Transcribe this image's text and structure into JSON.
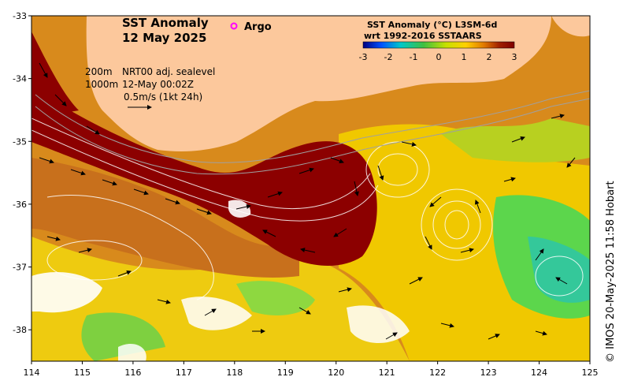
{
  "title": {
    "line1": "SST Anomaly",
    "line2": "12 May 2025"
  },
  "legend_marker": {
    "label": "Argo",
    "color": "#ff00ff"
  },
  "colorbar": {
    "title_line1": "SST Anomaly (°C) L3SM-6d",
    "title_line2": "wrt 1992-2016 SSTAARS",
    "ticks": [
      "-3",
      "-2",
      "-1",
      "0",
      "1",
      "2",
      "3"
    ],
    "colors": [
      "#00007f",
      "#0050ff",
      "#00c8c8",
      "#40c040",
      "#c8e000",
      "#ffd000",
      "#e07800",
      "#a02000",
      "#7f0000"
    ]
  },
  "annotations": {
    "depth1": "200m",
    "depth2": "1000m",
    "product": "NRT00 adj. sealevel",
    "time": "12-May 00:02Z",
    "scale": "0.5m/s (1kt 24h)"
  },
  "axes": {
    "x_ticks": [
      "114",
      "115",
      "116",
      "117",
      "118",
      "119",
      "120",
      "121",
      "122",
      "123",
      "124",
      "125"
    ],
    "y_ticks": [
      "-33",
      "-34",
      "-35",
      "-36",
      "-37",
      "-38"
    ],
    "xlim": [
      114,
      125
    ],
    "ylim": [
      -38.5,
      -33
    ]
  },
  "credit": "© IMOS 20-May-2025 11:58 Hobart",
  "colors": {
    "land": "#fcc89c",
    "warm_core": "#8c0000",
    "anomaly_orange": "#e08a10",
    "anomaly_yellow": "#f2d400",
    "anomaly_green": "#5cd64c",
    "cloud": "#ffffff"
  }
}
